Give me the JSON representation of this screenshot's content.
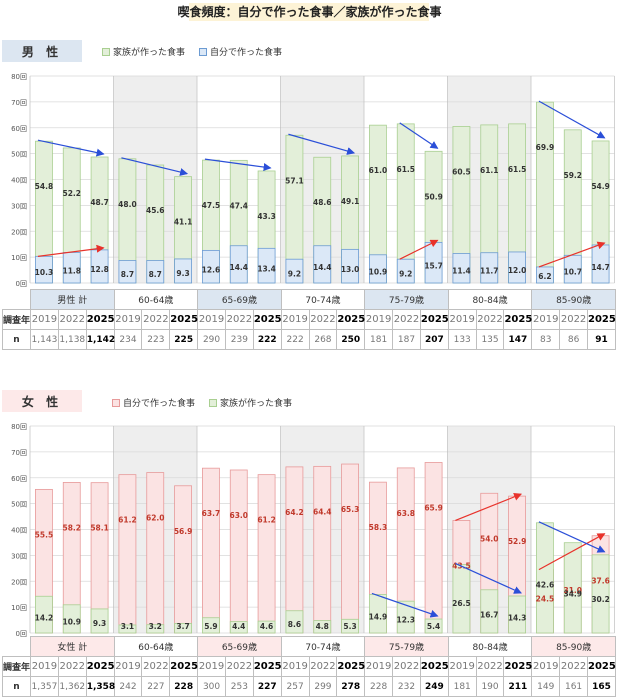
{
  "title": "喫食頻度：自分で作った食事／家族が作った食事",
  "colors": {
    "male_tag_bg": "#dce6f1",
    "female_tag_bg": "#fde9e9",
    "family_fill": "#e3efd9",
    "family_stroke": "#a9cf91",
    "self_male_fill": "#dbe8f7",
    "self_male_stroke": "#6c9bd2",
    "self_female_fill": "#fbe3e3",
    "self_female_stroke": "#e79a9a",
    "shade": "#eeeeee",
    "arrow_up": "#e8322b",
    "arrow_down": "#2b4fd8",
    "label_red": "#c0392b",
    "header_male": "#dce6f1",
    "header_female": "#fde9e9"
  },
  "male": {
    "tag": "男 性",
    "legend": [
      "家族が作った食事",
      "自分で作った食事"
    ],
    "chart_data": {
      "type": "bar",
      "ylim": [
        0,
        80
      ],
      "yticks": [
        "0回",
        "10回",
        "20回",
        "30回",
        "40回",
        "50回",
        "60回",
        "70回",
        "80回"
      ],
      "groups": [
        "男性 計",
        "60-64歳",
        "65-69歳",
        "70-74歳",
        "75-79歳",
        "80-84歳",
        "85-90歳"
      ],
      "years": [
        "2019",
        "2022",
        "2025"
      ],
      "series": [
        {
          "name": "家族が作った食事",
          "values": [
            [
              54.8,
              52.2,
              48.7
            ],
            [
              48.0,
              45.6,
              41.1
            ],
            [
              47.5,
              47.4,
              43.3
            ],
            [
              57.1,
              48.6,
              49.1
            ],
            [
              61.0,
              61.5,
              50.9
            ],
            [
              60.5,
              61.1,
              61.5
            ],
            [
              69.9,
              59.2,
              54.9
            ]
          ]
        },
        {
          "name": "自分で作った食事",
          "values": [
            [
              10.3,
              11.8,
              12.8
            ],
            [
              8.7,
              8.7,
              9.3
            ],
            [
              12.6,
              14.4,
              13.4
            ],
            [
              9.2,
              14.4,
              13.0
            ],
            [
              10.9,
              9.2,
              15.7
            ],
            [
              11.4,
              11.7,
              12.0
            ],
            [
              6.2,
              10.7,
              14.7
            ]
          ]
        }
      ],
      "trend_arrows": [
        {
          "group": 0,
          "series": 0,
          "from": 54.8,
          "to": 48.7,
          "dir": "down"
        },
        {
          "group": 0,
          "series": 1,
          "from": 10.3,
          "to": 12.8,
          "dir": "up"
        },
        {
          "group": 1,
          "series": 0,
          "from": 48.0,
          "to": 41.1,
          "dir": "down"
        },
        {
          "group": 2,
          "series": 0,
          "from": 47.5,
          "to": 43.3,
          "dir": "down"
        },
        {
          "group": 3,
          "series": 0,
          "from": 57.1,
          "to": 49.1,
          "dir": "down"
        },
        {
          "group": 4,
          "series": 0,
          "from": 61.5,
          "to": 50.9,
          "dir": "down",
          "start": 1
        },
        {
          "group": 4,
          "series": 1,
          "from": 9.2,
          "to": 15.7,
          "dir": "up",
          "start": 1
        },
        {
          "group": 6,
          "series": 0,
          "from": 69.9,
          "to": 54.9,
          "dir": "down"
        },
        {
          "group": 6,
          "series": 1,
          "from": 6.2,
          "to": 14.7,
          "dir": "up"
        }
      ]
    },
    "table": {
      "row1_label": "調査年",
      "row2_label": "n",
      "n": [
        [
          "1,143",
          "1,138",
          "1,142"
        ],
        [
          "234",
          "223",
          "225"
        ],
        [
          "290",
          "239",
          "222"
        ],
        [
          "222",
          "268",
          "250"
        ],
        [
          "181",
          "187",
          "207"
        ],
        [
          "133",
          "135",
          "147"
        ],
        [
          "83",
          "86",
          "91"
        ]
      ]
    }
  },
  "female": {
    "tag": "女 性",
    "legend": [
      "自分で作った食事",
      "家族が作った食事"
    ],
    "chart_data": {
      "type": "bar",
      "ylim": [
        0,
        80
      ],
      "yticks": [
        "0回",
        "10回",
        "20回",
        "30回",
        "40回",
        "50回",
        "60回",
        "70回",
        "80回"
      ],
      "groups": [
        "女性 計",
        "60-64歳",
        "65-69歳",
        "70-74歳",
        "75-79歳",
        "80-84歳",
        "85-90歳"
      ],
      "years": [
        "2019",
        "2022",
        "2025"
      ],
      "series": [
        {
          "name": "自分で作った食事",
          "values": [
            [
              55.5,
              58.2,
              58.1
            ],
            [
              61.2,
              62.0,
              56.9
            ],
            [
              63.7,
              63.0,
              61.2
            ],
            [
              64.2,
              64.4,
              65.3
            ],
            [
              58.3,
              63.8,
              65.9
            ],
            [
              43.5,
              54.0,
              52.9
            ],
            [
              24.5,
              31.0,
              37.6
            ]
          ]
        },
        {
          "name": "家族が作った食事",
          "values": [
            [
              14.2,
              10.9,
              9.3
            ],
            [
              3.1,
              3.2,
              3.7
            ],
            [
              5.9,
              4.4,
              4.6
            ],
            [
              8.6,
              4.8,
              5.3
            ],
            [
              14.9,
              12.3,
              5.4
            ],
            [
              26.5,
              16.7,
              14.3
            ],
            [
              42.6,
              34.9,
              30.2
            ]
          ]
        }
      ],
      "trend_arrows": [
        {
          "group": 4,
          "series": 1,
          "from": 14.9,
          "to": 5.4,
          "dir": "down"
        },
        {
          "group": 5,
          "series": 0,
          "from": 43.5,
          "to": 52.9,
          "dir": "up"
        },
        {
          "group": 5,
          "series": 1,
          "from": 26.5,
          "to": 14.3,
          "dir": "down"
        },
        {
          "group": 6,
          "series": 0,
          "from": 24.5,
          "to": 37.6,
          "dir": "up"
        },
        {
          "group": 6,
          "series": 1,
          "from": 42.6,
          "to": 30.2,
          "dir": "down"
        }
      ]
    },
    "table": {
      "row1_label": "調査年",
      "row2_label": "n",
      "n": [
        [
          "1,357",
          "1,362",
          "1,358"
        ],
        [
          "242",
          "227",
          "228"
        ],
        [
          "300",
          "253",
          "227"
        ],
        [
          "257",
          "299",
          "278"
        ],
        [
          "228",
          "232",
          "249"
        ],
        [
          "181",
          "190",
          "211"
        ],
        [
          "149",
          "161",
          "165"
        ]
      ]
    }
  }
}
